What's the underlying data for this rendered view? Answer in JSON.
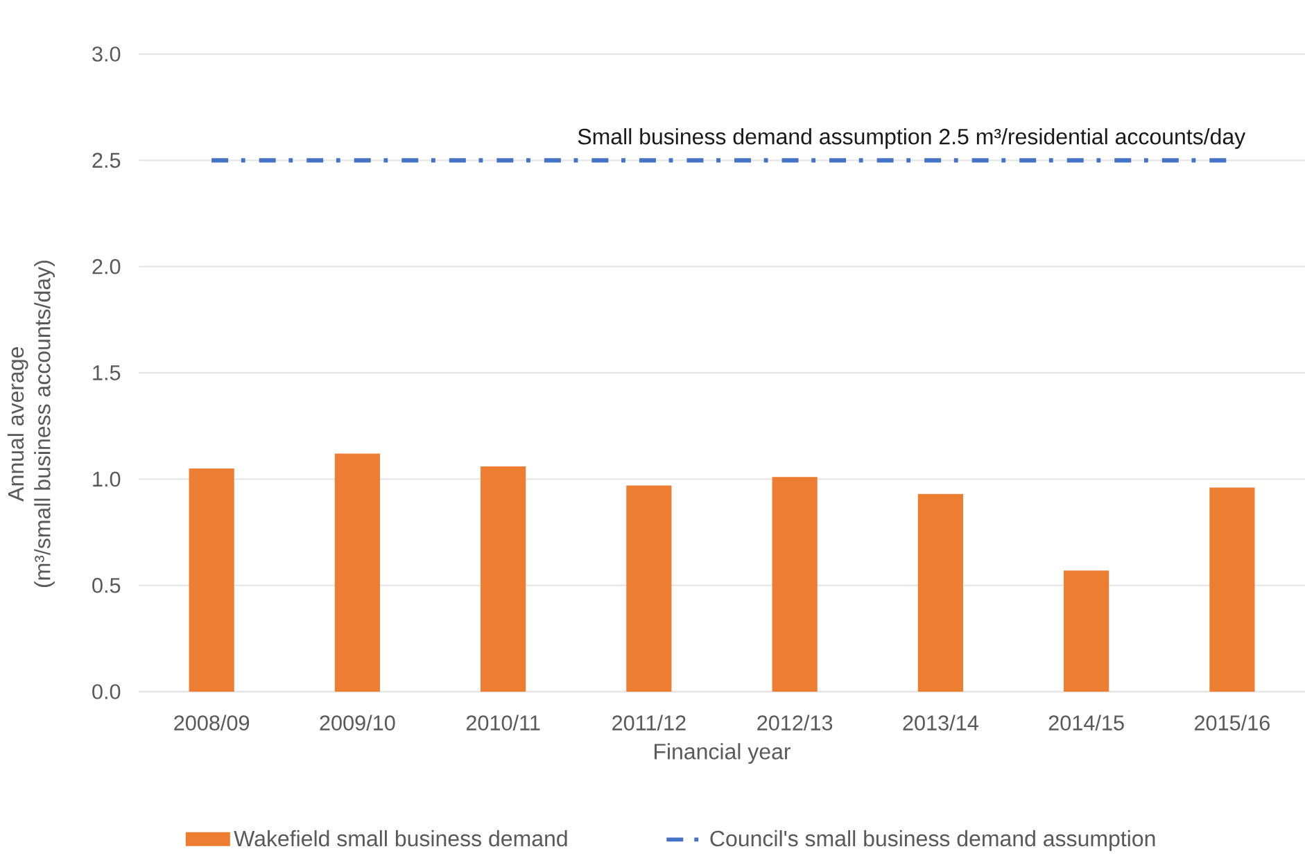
{
  "chart_data": {
    "type": "bar",
    "xlabel": "Financial year",
    "ylabel": "Annual average\n(m³/small business accounts/day)",
    "categories": [
      "2008/09",
      "2009/10",
      "2010/11",
      "2011/12",
      "2012/13",
      "2013/14",
      "2014/15",
      "2015/16"
    ],
    "series": [
      {
        "name": "Wakefield small business demand",
        "color": "#ed7d31",
        "values": [
          1.05,
          1.12,
          1.06,
          0.97,
          1.01,
          0.93,
          0.57,
          0.96
        ]
      },
      {
        "name": "Council's small business demand assumption",
        "type": "line",
        "color": "#4472c4",
        "line_style": "dashdot",
        "values": [
          2.5,
          2.5,
          2.5,
          2.5,
          2.5,
          2.5,
          2.5,
          2.5
        ]
      }
    ],
    "annotations": [
      {
        "text": "Small business demand assumption 2.5 m³/residential accounts/day",
        "y": 2.5
      }
    ],
    "ylim": [
      0,
      3
    ],
    "yticks": [
      {
        "value": 0,
        "label": "0.0"
      },
      0.5,
      {
        "value": 1,
        "label": "1.0"
      },
      1.5,
      {
        "value": 2,
        "label": "2.0"
      },
      2.5,
      {
        "value": 3,
        "label": "3.0"
      }
    ],
    "grid": "y",
    "legend": "bottom"
  }
}
